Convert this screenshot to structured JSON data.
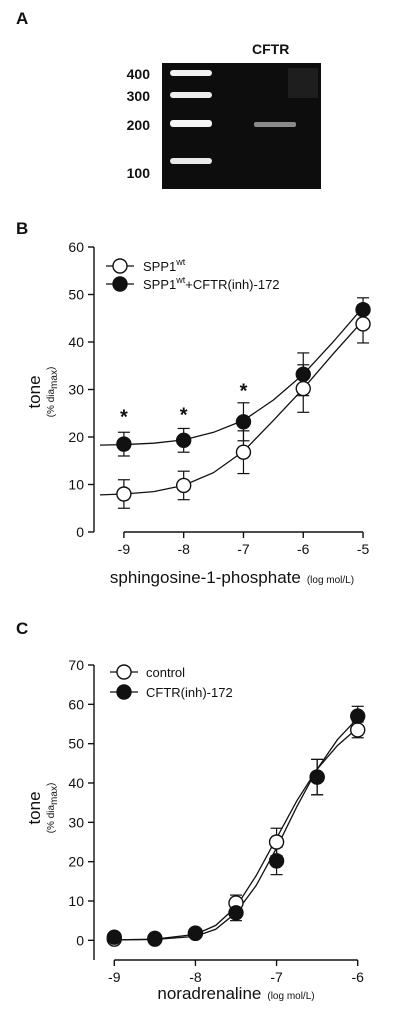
{
  "gel": {
    "panel_label": "A",
    "lane_label": "CFTR",
    "ladder": [
      "400",
      "300",
      "200",
      "100"
    ]
  },
  "chart_data": [
    {
      "panel_label": "B",
      "type": "line",
      "ylabel": "tone",
      "ylabel_sub": "(% dia",
      "ylabel_sub_sub": "max",
      "ylabel_sub_end": ")",
      "xlabel": "sphingosine-1-phosphate",
      "xunit": "(log mol/L)",
      "xlim": [
        -9.5,
        -4.8
      ],
      "ylim": [
        0,
        60
      ],
      "yticks": [
        "0",
        "10",
        "20",
        "30",
        "40",
        "50",
        "60"
      ],
      "xticks": [
        "-9",
        "-8",
        "-7",
        "-6",
        "-5"
      ],
      "legend_position": "top-left",
      "series": [
        {
          "name": "SPP1",
          "name_sup": "wt",
          "name_rest": "",
          "marker": "open",
          "x": [
            -9,
            -8,
            -7,
            -6,
            -5
          ],
          "y": [
            8,
            9.8,
            16.8,
            30.2,
            43.8
          ],
          "err": [
            3,
            3,
            4.5,
            5,
            4
          ],
          "fit": [
            [
              -9.4,
              7.8
            ],
            [
              -9,
              8
            ],
            [
              -8.5,
              8.5
            ],
            [
              -8,
              9.8
            ],
            [
              -7.5,
              12.5
            ],
            [
              -7,
              17
            ],
            [
              -6.5,
              23.5
            ],
            [
              -6,
              30.2
            ],
            [
              -5.5,
              37.5
            ],
            [
              -5,
              44.5
            ]
          ]
        },
        {
          "name": "SPP1",
          "name_sup": "wt",
          "name_rest": "+CFTR(inh)-172",
          "marker": "filled",
          "x": [
            -9,
            -8,
            -7,
            -6,
            -5
          ],
          "y": [
            18.5,
            19.3,
            23.2,
            33.2,
            46.8
          ],
          "err": [
            2.5,
            2.5,
            4,
            4.5,
            2.5
          ],
          "fit": [
            [
              -9.4,
              18.3
            ],
            [
              -9,
              18.4
            ],
            [
              -8.5,
              18.7
            ],
            [
              -8,
              19.4
            ],
            [
              -7.5,
              21
            ],
            [
              -7,
              23.5
            ],
            [
              -6.5,
              27.8
            ],
            [
              -6,
              33.2
            ],
            [
              -5.5,
              40
            ],
            [
              -5,
              47.3
            ]
          ]
        }
      ],
      "annotations": [
        {
          "x": -9,
          "y": 24.5,
          "text": "*"
        },
        {
          "x": -8,
          "y": 25,
          "text": "*"
        },
        {
          "x": -7,
          "y": 30,
          "text": "*"
        }
      ]
    },
    {
      "panel_label": "C",
      "type": "line",
      "ylabel": "tone",
      "ylabel_sub": "(% dia",
      "ylabel_sub_sub": "max",
      "ylabel_sub_end": ")",
      "xlabel": "noradrenaline",
      "xunit": "(log mol/L)",
      "xlim": [
        -9.25,
        -5.75
      ],
      "ylim": [
        -5,
        70
      ],
      "yticks": [
        "0",
        "10",
        "20",
        "30",
        "40",
        "50",
        "60",
        "70"
      ],
      "xticks": [
        "-9",
        "-8",
        "-7",
        "-6"
      ],
      "legend_position": "top-left",
      "series": [
        {
          "name": "control",
          "name_sup": "",
          "name_rest": "",
          "marker": "open",
          "x": [
            -9,
            -8.5,
            -8,
            -7.5,
            -7,
            -6.5,
            -6
          ],
          "y": [
            0.3,
            0.3,
            1.8,
            9.5,
            25,
            41.5,
            53.5
          ],
          "err": [
            0.5,
            0.5,
            0.8,
            2,
            3.5,
            4.5,
            2
          ],
          "fit": [
            [
              -9,
              0.1
            ],
            [
              -8.5,
              0.3
            ],
            [
              -8,
              1.5
            ],
            [
              -7.75,
              3.8
            ],
            [
              -7.5,
              8.5
            ],
            [
              -7.25,
              16.5
            ],
            [
              -7,
              26
            ],
            [
              -6.75,
              35.5
            ],
            [
              -6.5,
              43.5
            ],
            [
              -6.25,
              49.5
            ],
            [
              -6,
              54
            ]
          ]
        },
        {
          "name": "CFTR(inh)-172",
          "name_sup": "",
          "name_rest": "",
          "marker": "filled",
          "x": [
            -9,
            -8.5,
            -8,
            -7.5,
            -7,
            -6.5,
            -6
          ],
          "y": [
            0.8,
            0.5,
            1.8,
            7,
            20.2,
            41.5,
            57
          ],
          "err": [
            0.5,
            0.5,
            0.8,
            2,
            3.5,
            4.5,
            2.5
          ],
          "fit": [
            [
              -9,
              0.1
            ],
            [
              -8.5,
              0.2
            ],
            [
              -8,
              1
            ],
            [
              -7.75,
              2.8
            ],
            [
              -7.5,
              7
            ],
            [
              -7.25,
              14
            ],
            [
              -7,
              23.5
            ],
            [
              -6.75,
              34
            ],
            [
              -6.5,
              43.5
            ],
            [
              -6.25,
              51
            ],
            [
              -6,
              56.5
            ]
          ]
        }
      ],
      "annotations": []
    }
  ]
}
